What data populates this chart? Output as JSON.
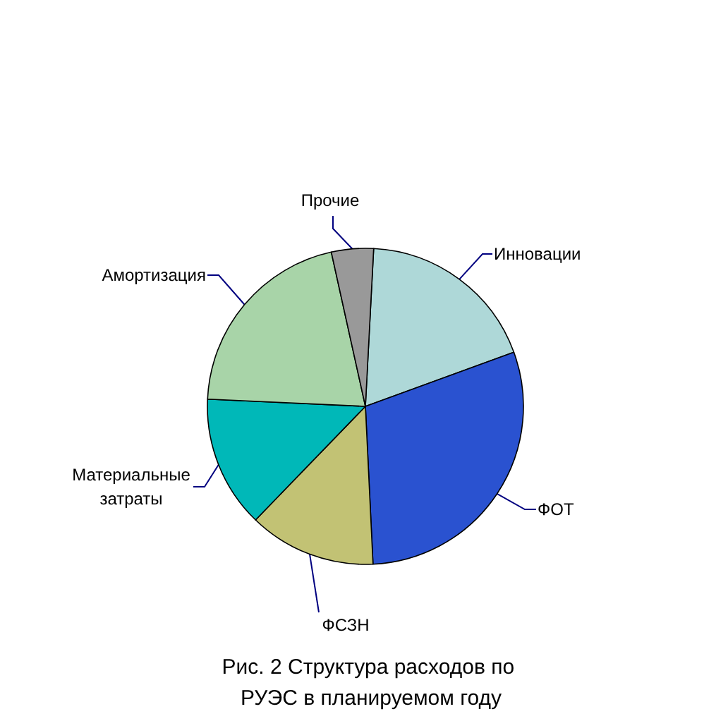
{
  "chart_data": {
    "type": "pie",
    "title": "Рис. 2 Структура расходов по РУЭС в планируемом году",
    "categories": [
      "Инновации",
      "ФОТ",
      "ФСЗН",
      "Материальные затраты",
      "Амортизация",
      "Прочие"
    ],
    "values": [
      18.6,
      29.8,
      13.0,
      13.5,
      20.8,
      4.3
    ],
    "colors": [
      "#aed8d8",
      "#2a52d0",
      "#c2c274",
      "#00b8b8",
      "#a8d4a8",
      "#999999"
    ],
    "legend": false
  }
}
